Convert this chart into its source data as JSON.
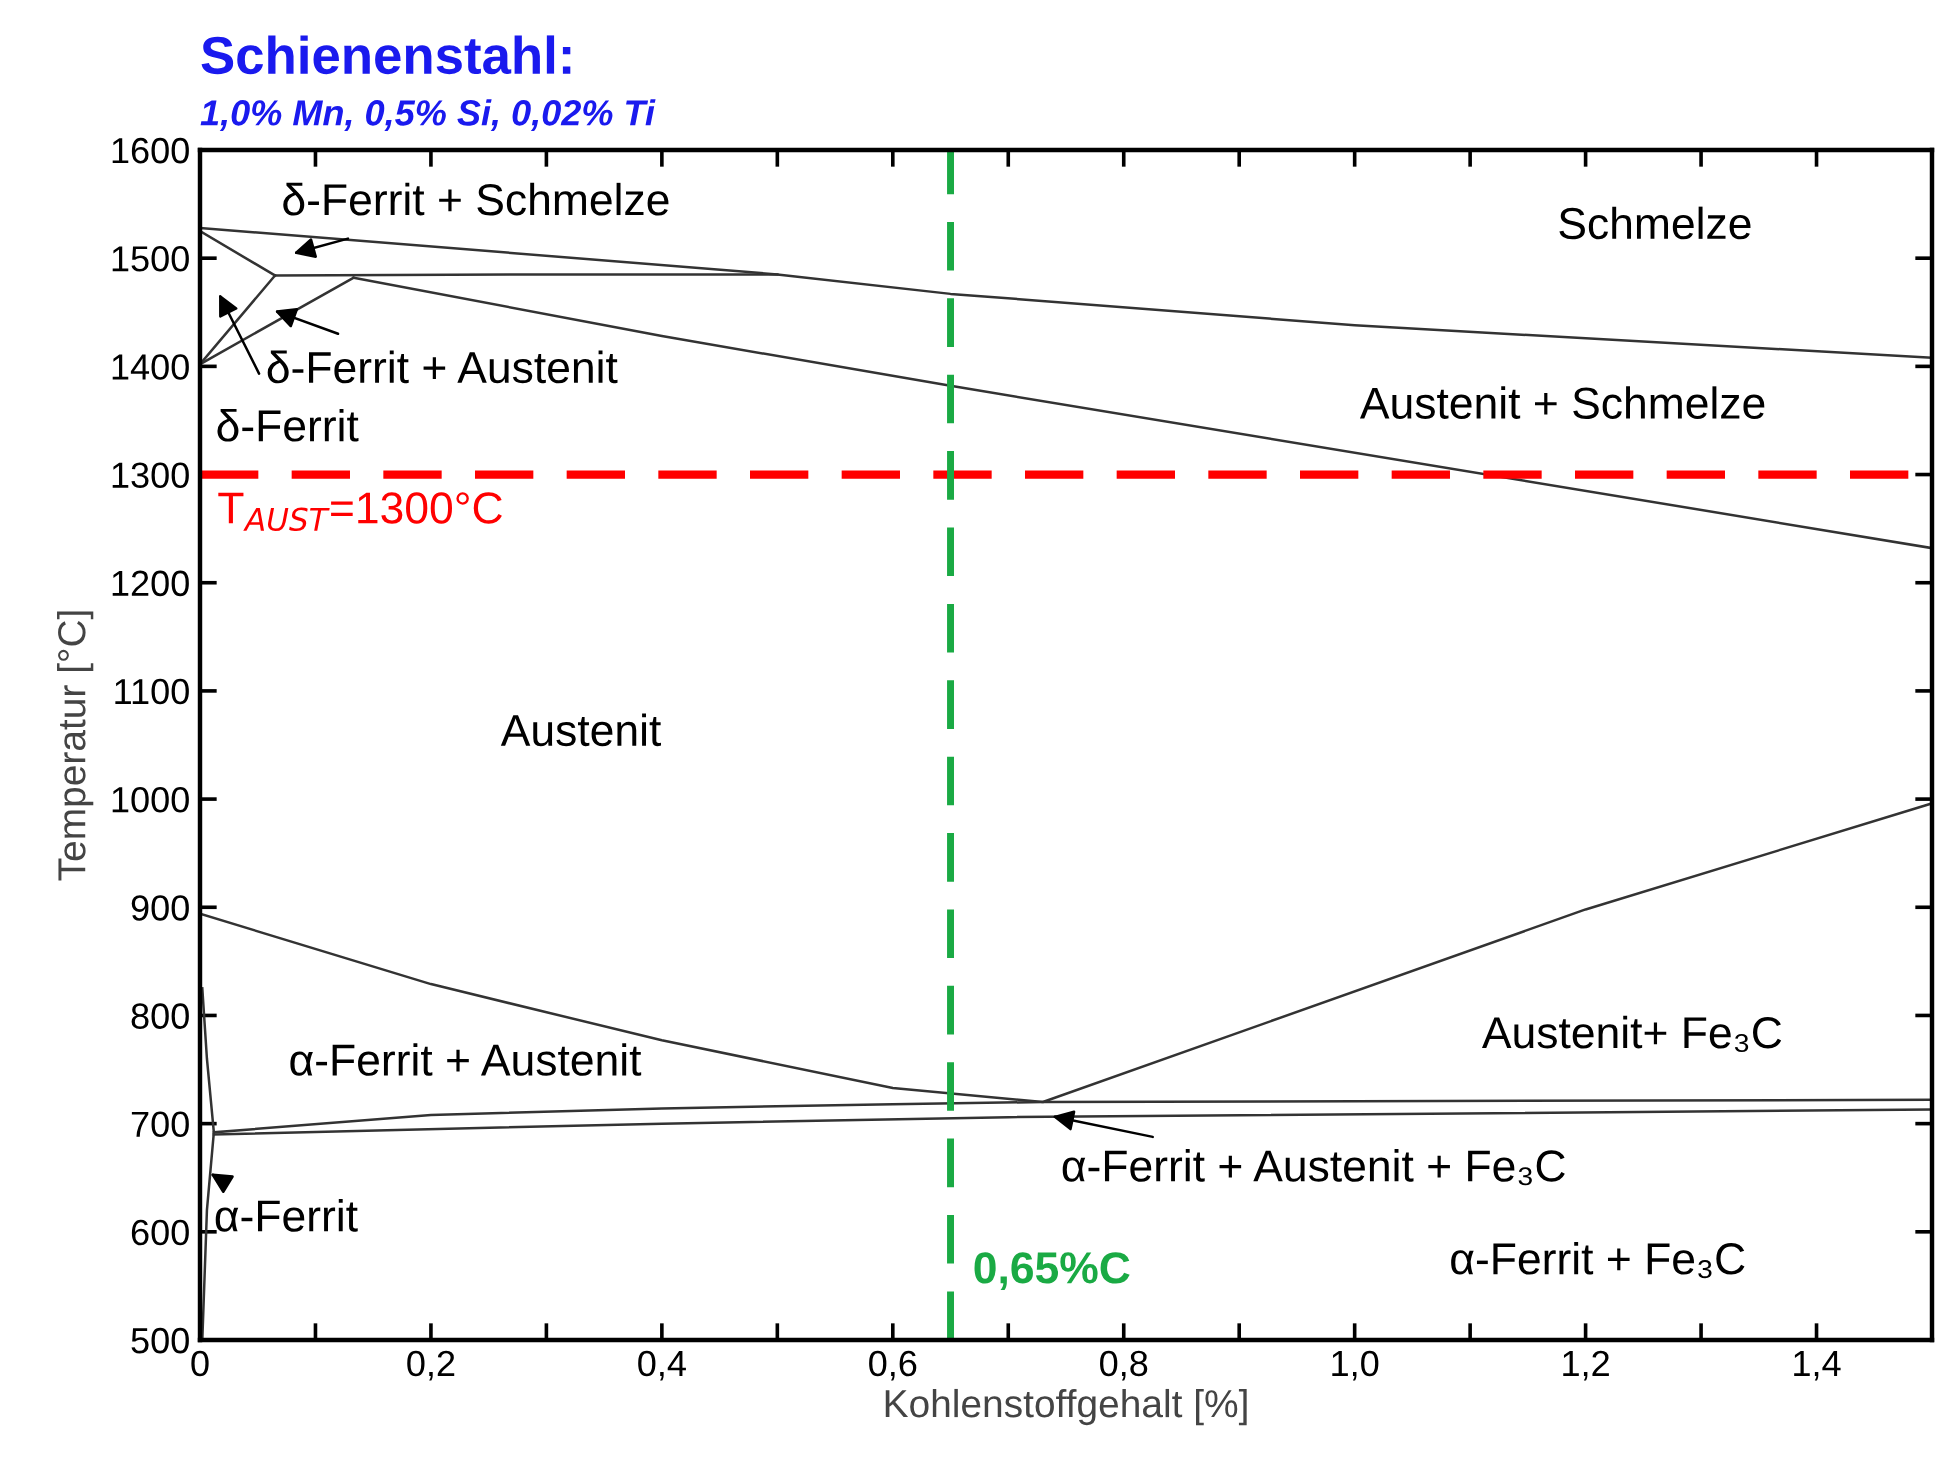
{
  "chart_data": {
    "type": "line",
    "title": "Schienenstahl:",
    "subtitle": "1,0% Mn, 0,5% Si, 0,02% Ti",
    "xlabel": "Kohlenstoffgehalt [%]",
    "ylabel": "Temperatur [°C]",
    "xlim": [
      0,
      1.5
    ],
    "ylim": [
      500,
      1600
    ],
    "xticks": [
      {
        "value": 0,
        "label": "0"
      },
      {
        "value": 0.1,
        "label": null
      },
      {
        "value": 0.2,
        "label": "0,2"
      },
      {
        "value": 0.3,
        "label": null
      },
      {
        "value": 0.4,
        "label": "0,4"
      },
      {
        "value": 0.5,
        "label": null
      },
      {
        "value": 0.6,
        "label": "0,6"
      },
      {
        "value": 0.7,
        "label": null
      },
      {
        "value": 0.8,
        "label": "0,8"
      },
      {
        "value": 0.9,
        "label": null
      },
      {
        "value": 1.0,
        "label": "1,0"
      },
      {
        "value": 1.1,
        "label": null
      },
      {
        "value": 1.2,
        "label": "1,2"
      },
      {
        "value": 1.3,
        "label": null
      },
      {
        "value": 1.4,
        "label": "1,4"
      }
    ],
    "yticks": [
      500,
      600,
      700,
      800,
      900,
      1000,
      1100,
      1200,
      1300,
      1400,
      1500,
      1600
    ],
    "grid": false,
    "marker": "none",
    "line_style": "solid",
    "series": [
      {
        "color": "#333333",
        "x": [
          0,
          0.5,
          0.65,
          1.0,
          1.5
        ],
        "values": [
          1528,
          1485,
          1467,
          1438,
          1408
        ]
      },
      {
        "color": "#333333",
        "x": [
          0.065,
          0.3,
          0.5
        ],
        "values": [
          1484,
          1485,
          1485
        ]
      },
      {
        "color": "#333333",
        "x": [
          0,
          0.065
        ],
        "values": [
          1525,
          1484
        ]
      },
      {
        "color": "#333333",
        "x": [
          0,
          0.065
        ],
        "values": [
          1402,
          1484
        ]
      },
      {
        "color": "#333333",
        "x": [
          0,
          0.133
        ],
        "values": [
          1402,
          1482
        ]
      },
      {
        "color": "#333333",
        "x": [
          0.133,
          0.4,
          0.65,
          1.5
        ],
        "values": [
          1482,
          1428,
          1382,
          1232
        ]
      },
      {
        "color": "#333333",
        "x": [
          0,
          0.2,
          0.4,
          0.6,
          0.73,
          1.2,
          1.5
        ],
        "values": [
          894,
          829,
          777,
          733,
          720,
          898,
          996
        ]
      },
      {
        "color": "#333333",
        "x": [
          0.012,
          0.2,
          0.4,
          0.6,
          0.73,
          1.5
        ],
        "values": [
          692,
          708,
          714,
          718,
          720,
          722
        ]
      },
      {
        "color": "#333333",
        "x": [
          0.012,
          0.4,
          0.7,
          1.5
        ],
        "values": [
          690,
          700,
          706,
          713
        ]
      },
      {
        "color": "#333333",
        "x": [
          0.002,
          0.006,
          0.012,
          0.006,
          0.002
        ],
        "values": [
          825,
          760,
          692,
          620,
          500
        ]
      }
    ],
    "ref_lines": [
      {
        "axis": "y",
        "value": 1300,
        "label": "T$_{AUST}$=1300°C",
        "color": "#ff0000",
        "line_style": "dashed"
      },
      {
        "axis": "x",
        "value": 0.65,
        "label": "0,65%C",
        "color": "#1aaa44",
        "line_style": "dashed"
      }
    ],
    "annotations": [
      "δ-Ferrit + Schmelze",
      "δ-Ferrit + Austenit",
      "δ-Ferrit",
      "Schmelze",
      "Austenit + Schmelze",
      "Austenit",
      "α-Ferrit + Austenit",
      "Austenit+ Fe₃C",
      "α-Ferrit + Austenit + Fe₃C",
      "α-Ferrit + Fe₃C",
      "α-Ferrit"
    ]
  }
}
